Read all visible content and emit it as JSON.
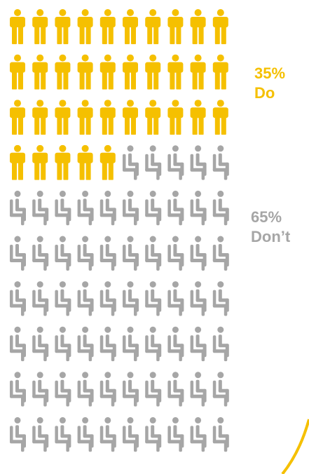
{
  "chart_data": {
    "type": "pictogram",
    "total_icons": 100,
    "columns": 10,
    "rows": 10,
    "categories": [
      {
        "percent_label": "35%",
        "label": "Do",
        "value": 35,
        "icon": "standing-person-icon",
        "color": "#F5C000"
      },
      {
        "percent_label": "65%",
        "label": "Don’t",
        "value": 65,
        "icon": "seated-person-icon",
        "color": "#A6A6A6"
      }
    ]
  },
  "accent_color": "#F5C000"
}
